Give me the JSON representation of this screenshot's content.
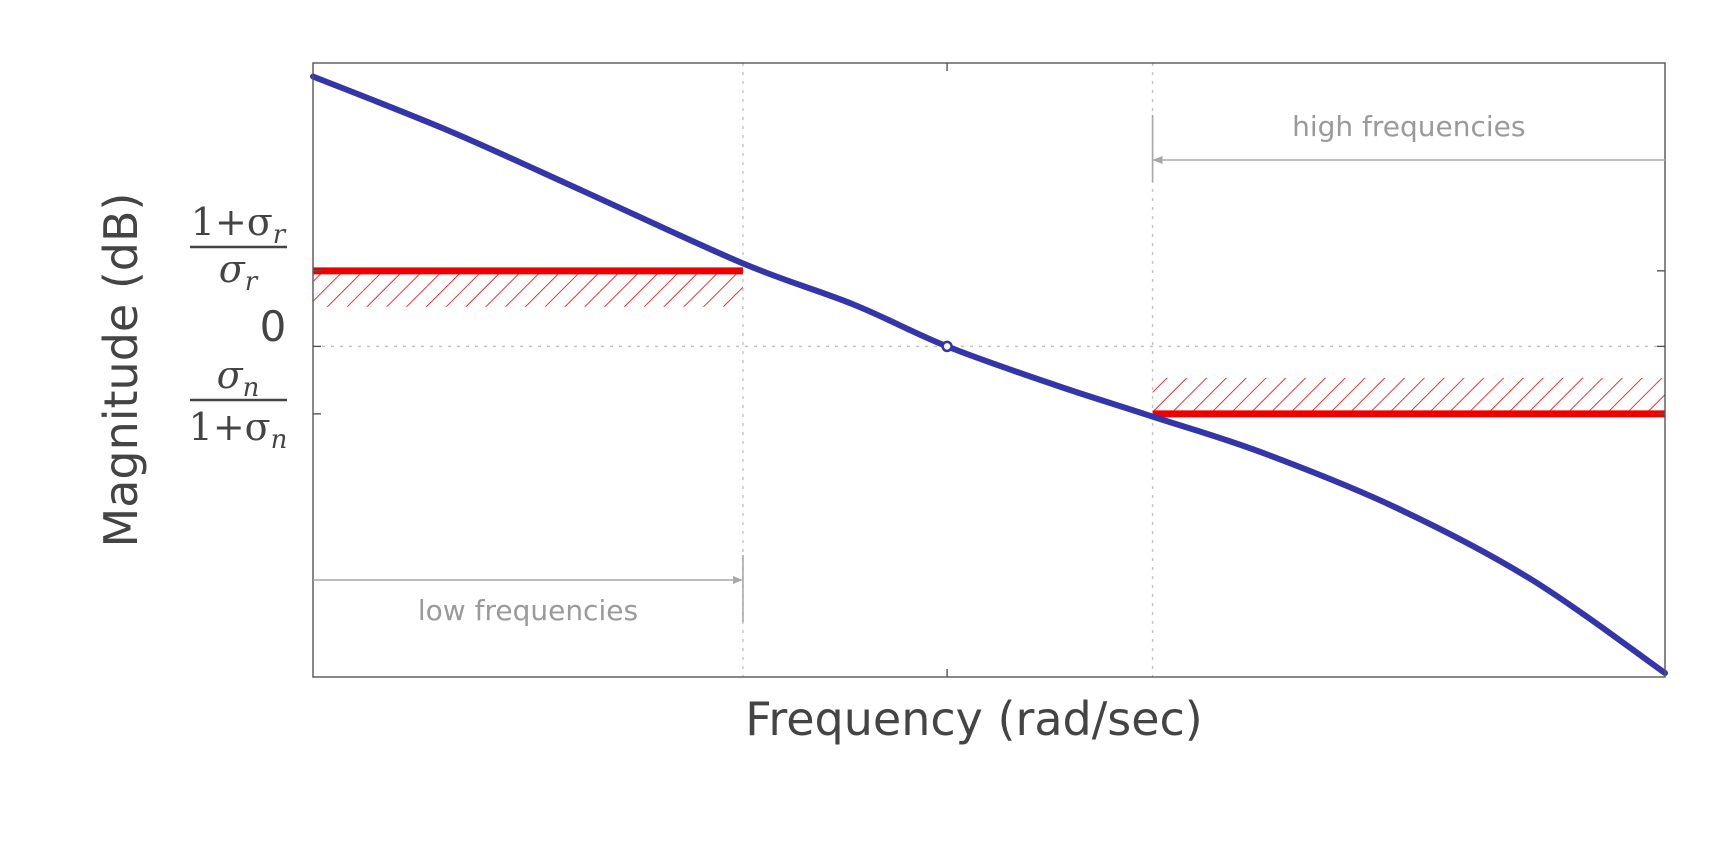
{
  "chart_data": {
    "type": "line",
    "title": "",
    "xlabel": "Frequency (rad/sec)",
    "ylabel": "Magnitude (dB)",
    "x_scale": "log",
    "y_tick_labels": {
      "upper": {
        "numerator": "1+σ",
        "numerator_sub": "r",
        "denominator": "σ",
        "denominator_sub": "r"
      },
      "zero": "0",
      "lower": {
        "numerator": "σ",
        "numerator_sub": "n",
        "denominator": "1+σ",
        "denominator_sub": "n"
      }
    },
    "series": [
      {
        "color": "#3535aa",
        "x": [
          0.0,
          0.1,
          0.2,
          0.318,
          0.4,
          0.469,
          0.55,
          0.621,
          0.7,
          0.8,
          0.9,
          1.0
        ],
        "y": [
          2.0,
          1.6,
          1.15,
          0.615,
          0.31,
          0.0,
          -0.29,
          -0.52,
          -0.78,
          -1.19,
          -1.72,
          -2.42
        ]
      }
    ],
    "markers": [
      {
        "x": 0.469,
        "y": 0.0,
        "shape": "open-circle"
      }
    ],
    "constraints": [
      {
        "name": "low-frequency bound",
        "color": "#ee0000",
        "x_range": [
          0.0,
          0.318
        ],
        "y": 0.56,
        "hatch": "below"
      },
      {
        "name": "high-frequency bound",
        "color": "#ee0000",
        "x_range": [
          0.621,
          1.0
        ],
        "y": -0.5,
        "hatch": "above"
      }
    ],
    "reference_lines": {
      "vertical": [
        0.318,
        0.621
      ],
      "horizontal": [
        0.0
      ]
    },
    "annotations": [
      {
        "text": "low frequencies",
        "arrow": "right",
        "x_range": [
          0.0,
          0.318
        ]
      },
      {
        "text": "high frequencies",
        "arrow": "left",
        "x_range": [
          0.621,
          1.0
        ]
      }
    ],
    "xlim": [
      0,
      1
    ],
    "ylim": [
      -2.45,
      2.1
    ],
    "grid": false,
    "legend": "none"
  }
}
